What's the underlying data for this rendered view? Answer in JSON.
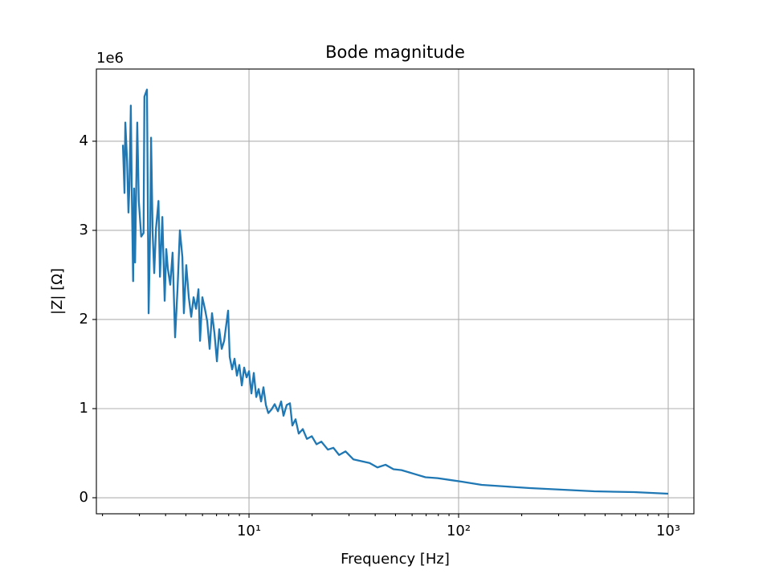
{
  "chart_data": {
    "type": "line",
    "title": "Bode magnitude",
    "x_label": "Frequency [Hz]",
    "y_label": "|Z| [Ω]",
    "y_offset_text": "1e6",
    "x_scale": "log",
    "grid": true,
    "color": "#1f77b4",
    "xlim": [
      1.87,
      1326
    ],
    "ylim": [
      -0.18,
      4.81
    ],
    "xticks": [
      {
        "value": 10,
        "label": "10¹"
      },
      {
        "value": 100,
        "label": "10²"
      },
      {
        "value": 1000,
        "label": "10³"
      }
    ],
    "xminorticks": [
      2,
      3,
      4,
      5,
      6,
      7,
      8,
      9,
      20,
      30,
      40,
      50,
      60,
      70,
      80,
      90,
      200,
      300,
      400,
      500,
      600,
      700,
      800,
      900
    ],
    "yticks": [
      0,
      1,
      2,
      3,
      4
    ],
    "x": [
      2.503,
      2.547,
      2.57,
      2.62,
      2.66,
      2.69,
      2.73,
      2.76,
      2.8,
      2.83,
      2.86,
      2.93,
      2.98,
      3.06,
      3.14,
      3.17,
      3.26,
      3.32,
      3.38,
      3.41,
      3.47,
      3.53,
      3.6,
      3.7,
      3.76,
      3.86,
      3.96,
      4.03,
      4.1,
      4.21,
      4.32,
      4.44,
      4.56,
      4.68,
      4.81,
      4.89,
      5.02,
      5.16,
      5.3,
      5.44,
      5.59,
      5.74,
      5.84,
      5.99,
      6.16,
      6.32,
      6.49,
      6.66,
      6.84,
      7.03,
      7.21,
      7.41,
      7.61,
      7.95,
      8.09,
      8.31,
      8.53,
      8.76,
      8.99,
      9.24,
      9.48,
      9.74,
      10.0,
      10.27,
      10.54,
      10.83,
      11.12,
      11.42,
      11.72,
      12.04,
      12.36,
      12.8,
      13.26,
      13.74,
      14.23,
      14.61,
      15.13,
      15.68,
      16.1,
      16.68,
      17.27,
      18.06,
      18.89,
      19.94,
      21.0,
      22.13,
      23.79,
      25.27,
      26.9,
      28.88,
      31.5,
      34.4,
      37.6,
      41.0,
      44.8,
      48.9,
      53.4,
      60.9,
      69.5,
      79.4,
      90.6,
      103.5,
      128.9,
      168.1,
      219.2,
      312,
      444,
      688,
      1000
    ],
    "series": [
      {
        "name": "|Z|",
        "color": "#1f77b4",
        "values": [
          3.96,
          3.42,
          4.21,
          3.78,
          3.2,
          3.51,
          4.4,
          3.42,
          2.43,
          3.47,
          2.64,
          4.21,
          3.33,
          2.93,
          2.97,
          4.5,
          4.58,
          2.07,
          3.06,
          4.04,
          2.97,
          2.52,
          3.02,
          3.33,
          2.48,
          3.15,
          2.21,
          2.79,
          2.57,
          2.39,
          2.75,
          1.8,
          2.34,
          3.0,
          2.7,
          2.07,
          2.61,
          2.25,
          2.03,
          2.25,
          2.12,
          2.34,
          1.76,
          2.25,
          2.12,
          1.98,
          1.67,
          2.07,
          1.85,
          1.53,
          1.89,
          1.67,
          1.76,
          2.1,
          1.58,
          1.44,
          1.56,
          1.37,
          1.49,
          1.26,
          1.46,
          1.35,
          1.42,
          1.17,
          1.4,
          1.13,
          1.22,
          1.08,
          1.24,
          1.04,
          0.95,
          0.99,
          1.05,
          0.97,
          1.08,
          0.92,
          1.04,
          1.06,
          0.81,
          0.88,
          0.72,
          0.77,
          0.66,
          0.69,
          0.6,
          0.63,
          0.54,
          0.56,
          0.48,
          0.52,
          0.43,
          0.41,
          0.39,
          0.34,
          0.37,
          0.32,
          0.31,
          0.27,
          0.23,
          0.22,
          0.2,
          0.18,
          0.144,
          0.126,
          0.108,
          0.09,
          0.072,
          0.063,
          0.045
        ]
      }
    ]
  }
}
